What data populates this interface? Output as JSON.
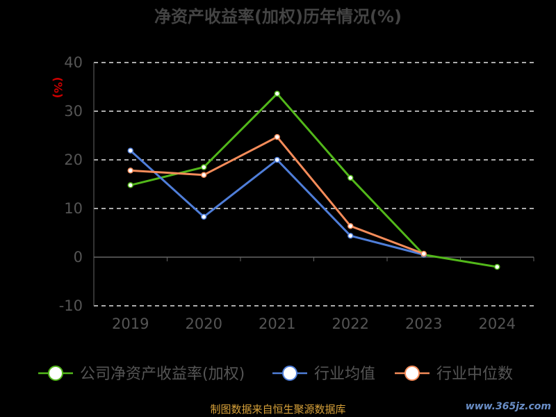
{
  "chart_data": {
    "type": "line",
    "title": "净资产收益率(加权)历年情况(%)",
    "ylabel": "(%)",
    "xlabel": "",
    "categories": [
      "2019",
      "2020",
      "2021",
      "2022",
      "2023",
      "2024"
    ],
    "ylim": [
      -10,
      40
    ],
    "yticks": [
      -10,
      0,
      10,
      20,
      30,
      40
    ],
    "grid": true,
    "legend_position": "bottom",
    "series": [
      {
        "name": "公司净资产收益率(加权)",
        "color": "#52b81a",
        "values": [
          14.8,
          18.5,
          33.6,
          16.3,
          0.5,
          -2.0
        ]
      },
      {
        "name": "行业均值",
        "color": "#4f7ed9",
        "values": [
          21.9,
          8.3,
          20.0,
          4.4,
          0.5,
          null
        ]
      },
      {
        "name": "行业中位数",
        "color": "#f58c5a",
        "values": [
          17.8,
          16.9,
          24.7,
          6.4,
          0.7,
          null
        ]
      }
    ]
  },
  "footer": {
    "source": "制图数据来自恒生聚源数据库",
    "watermark": "www.365jz.com"
  }
}
